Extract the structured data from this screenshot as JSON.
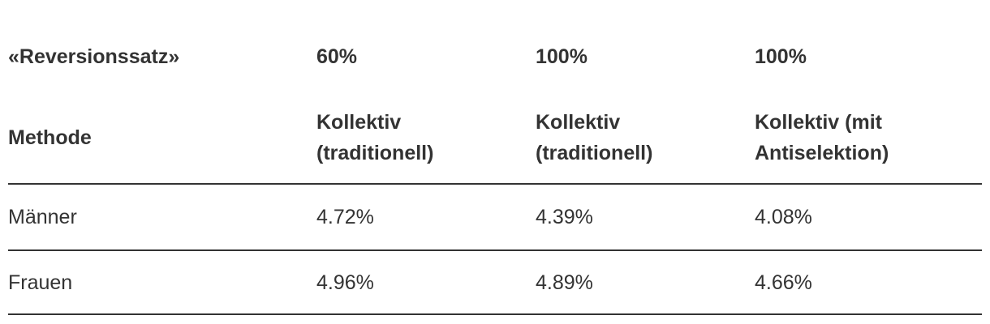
{
  "table": {
    "header": [
      [
        "«Reversionssatz»",
        "60%",
        "100%",
        "100%"
      ],
      [
        "Methode",
        "Kollektiv (traditionell)",
        "Kollektiv (traditionell)",
        "Kollektiv (mit Antiselektion)"
      ]
    ],
    "rows": [
      [
        "Männer",
        "4.72%",
        "4.39%",
        "4.08%"
      ],
      [
        "Frauen",
        "4.96%",
        "4.89%",
        "4.66%"
      ]
    ]
  }
}
